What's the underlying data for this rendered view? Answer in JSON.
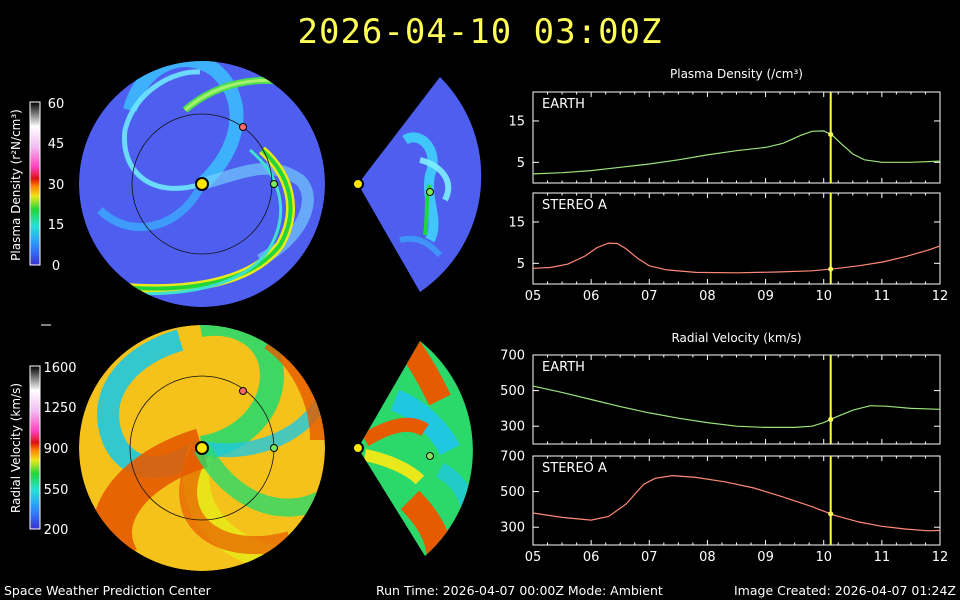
{
  "header": {
    "title": "2026-04-10  03:00Z"
  },
  "footer": {
    "left": "Space Weather Prediction Center",
    "center": "Run Time: 2026-04-07 00:00Z  Mode: Ambient",
    "right": "Image Created: 2026-04-07 01:24Z"
  },
  "density_colorbar": {
    "label": "Plasma Density (r²N/cm³)",
    "ticks": [
      "0",
      "15",
      "30",
      "45",
      "60"
    ]
  },
  "velocity_colorbar": {
    "label": "Radial Velocity (km/s)",
    "ticks": [
      "200",
      "550",
      "900",
      "1250",
      "1600"
    ]
  },
  "chart_data": [
    {
      "type": "line",
      "title": "Plasma Density (/cm³)",
      "panel": "EARTH",
      "x": [
        5.0,
        5.5,
        6.0,
        6.5,
        7.0,
        7.5,
        8.0,
        8.5,
        9.0,
        9.3,
        9.6,
        9.8,
        10.0,
        10.15,
        10.3,
        10.5,
        10.7,
        11.0,
        11.5,
        12.0
      ],
      "y": [
        2.2,
        2.5,
        3.0,
        3.8,
        4.6,
        5.6,
        6.8,
        7.8,
        8.6,
        9.6,
        11.5,
        12.5,
        12.6,
        11.5,
        9.5,
        7.0,
        5.6,
        5.0,
        5.0,
        5.3
      ],
      "xlim": [
        5,
        12
      ],
      "ylim": [
        0,
        22
      ],
      "yticks": [
        5,
        15
      ],
      "current_time": 10.12,
      "color": "#9be37a"
    },
    {
      "type": "line",
      "title": "",
      "panel": "STEREO A",
      "x": [
        5.0,
        5.3,
        5.6,
        5.9,
        6.1,
        6.3,
        6.45,
        6.6,
        6.8,
        7.0,
        7.3,
        7.8,
        8.5,
        9.2,
        9.8,
        10.2,
        10.6,
        11.0,
        11.4,
        11.8,
        12.0
      ],
      "y": [
        3.8,
        4.0,
        4.8,
        6.8,
        8.8,
        9.9,
        9.8,
        8.5,
        6.2,
        4.4,
        3.4,
        2.8,
        2.7,
        2.9,
        3.2,
        3.7,
        4.4,
        5.3,
        6.6,
        8.2,
        9.2
      ],
      "xlim": [
        5,
        12
      ],
      "ylim": [
        0,
        22
      ],
      "yticks": [
        5,
        15
      ],
      "xticklabels": [
        "05",
        "06",
        "07",
        "08",
        "09",
        "10",
        "11",
        "12"
      ],
      "current_time": 10.12,
      "color": "#ff8a75"
    },
    {
      "type": "line",
      "title": "Radial Velocity (km/s)",
      "panel": "EARTH",
      "x": [
        5.0,
        5.5,
        6.0,
        6.5,
        7.0,
        7.5,
        8.0,
        8.5,
        9.0,
        9.5,
        9.8,
        10.0,
        10.2,
        10.5,
        10.8,
        11.1,
        11.5,
        12.0
      ],
      "y": [
        525,
        490,
        450,
        410,
        375,
        345,
        320,
        300,
        293,
        293,
        300,
        320,
        350,
        390,
        415,
        412,
        400,
        395
      ],
      "xlim": [
        5,
        12
      ],
      "ylim": [
        200,
        700
      ],
      "yticks": [
        300,
        500,
        700
      ],
      "current_time": 10.12,
      "color": "#9be37a"
    },
    {
      "type": "line",
      "title": "",
      "panel": "STEREO A",
      "x": [
        5.0,
        5.5,
        6.0,
        6.3,
        6.6,
        6.9,
        7.1,
        7.4,
        7.8,
        8.3,
        8.8,
        9.3,
        9.8,
        10.2,
        10.6,
        11.0,
        11.4,
        11.8,
        12.0
      ],
      "y": [
        380,
        355,
        340,
        360,
        430,
        540,
        575,
        590,
        580,
        555,
        520,
        470,
        415,
        365,
        330,
        305,
        290,
        280,
        282
      ],
      "xlim": [
        5,
        12
      ],
      "ylim": [
        200,
        700
      ],
      "yticks": [
        300,
        500,
        700
      ],
      "xticklabels": [
        "05",
        "06",
        "07",
        "08",
        "09",
        "10",
        "11",
        "12"
      ],
      "current_time": 10.12,
      "color": "#ff8a75"
    }
  ]
}
